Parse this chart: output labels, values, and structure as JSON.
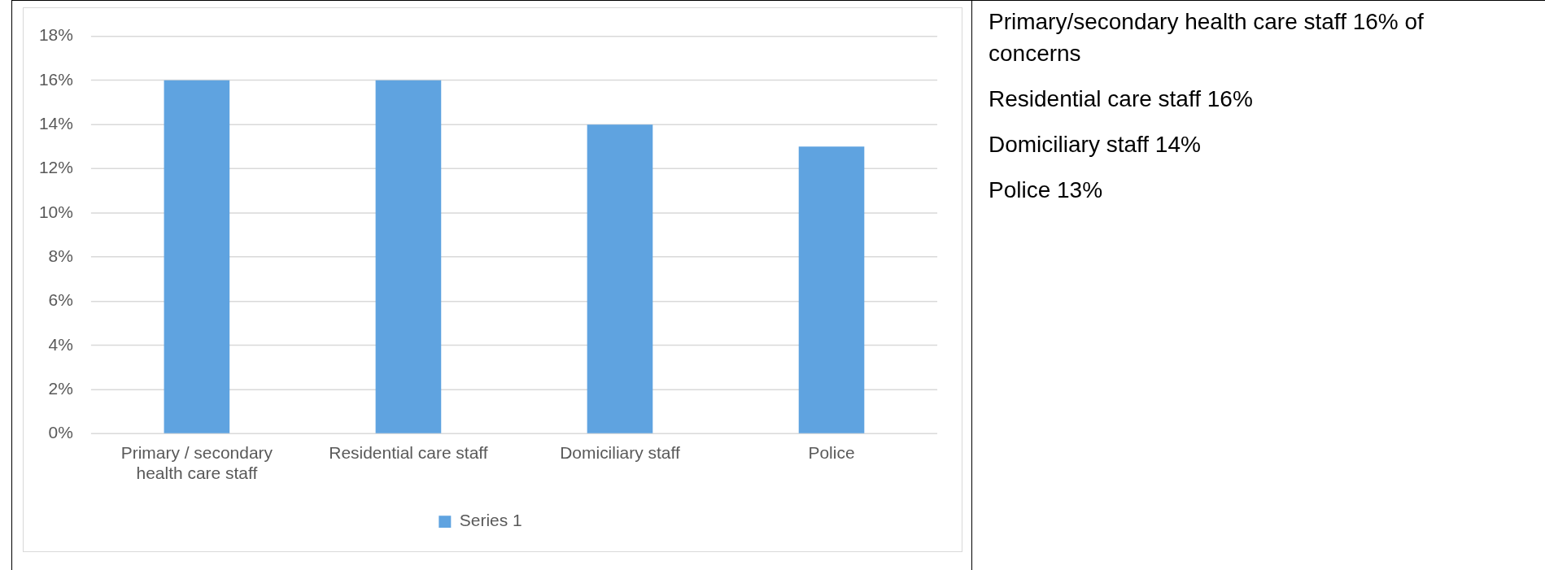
{
  "chart_data": {
    "type": "bar",
    "categories": [
      "Primary / secondary health care staff",
      "Residential care staff",
      "Domiciliary staff",
      "Police"
    ],
    "series": [
      {
        "name": "Series 1",
        "color": "#5fa3e0",
        "values": [
          16,
          16,
          14,
          13
        ]
      }
    ],
    "ylim": [
      0,
      18
    ],
    "yticks": [
      {
        "value": 0,
        "label": "0%"
      },
      {
        "value": 2,
        "label": "2%"
      },
      {
        "value": 4,
        "label": "4%"
      },
      {
        "value": 6,
        "label": "6%"
      },
      {
        "value": 8,
        "label": "8%"
      },
      {
        "value": 10,
        "label": "10%"
      },
      {
        "value": 12,
        "label": "12%"
      },
      {
        "value": 14,
        "label": "14%"
      },
      {
        "value": 16,
        "label": "16%"
      },
      {
        "value": 18,
        "label": "18%"
      }
    ],
    "grid": "y",
    "legend": "bottom",
    "annotations": [
      "Primary/secondary health care staff 16% of concerns",
      "Residential care staff 16%",
      "Domiciliary staff 14%",
      "Police 13%"
    ]
  }
}
